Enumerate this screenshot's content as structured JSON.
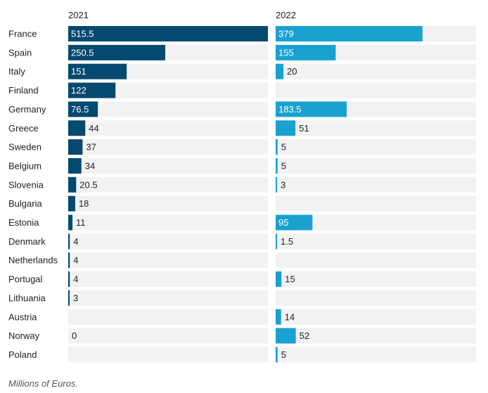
{
  "chart_data": {
    "type": "bar",
    "orientation": "horizontal",
    "layout": "small-multiples",
    "categories": [
      "France",
      "Spain",
      "Italy",
      "Finland",
      "Germany",
      "Greece",
      "Sweden",
      "Belgium",
      "Slovenia",
      "Bulgaria",
      "Estonia",
      "Denmark",
      "Netherlands",
      "Portugal",
      "Lithuania",
      "Austria",
      "Norway",
      "Poland"
    ],
    "series": [
      {
        "name": "2021",
        "color": "#04496f",
        "values": [
          515.5,
          250.5,
          151,
          122,
          76.5,
          44,
          37,
          34,
          20.5,
          18,
          11,
          4,
          4,
          4,
          3,
          null,
          0,
          null
        ],
        "labels": [
          "515.5",
          "250.5",
          "151",
          "122",
          "76.5",
          "44",
          "37",
          "34",
          "20.5",
          "18",
          "11",
          "4",
          "4",
          "4",
          "3",
          "",
          "0",
          ""
        ]
      },
      {
        "name": "2022",
        "color": "#19a2d0",
        "values": [
          379,
          155,
          20,
          null,
          183.5,
          51,
          5,
          5,
          3,
          null,
          95,
          1.5,
          null,
          15,
          null,
          14,
          52,
          5
        ],
        "labels": [
          "379",
          "155",
          "20",
          "",
          "183.5",
          "51",
          "5",
          "5",
          "3",
          "",
          "95",
          "1.5",
          "",
          "15",
          "",
          "14",
          "52",
          "5"
        ]
      }
    ],
    "xlim": [
      0,
      515.5
    ],
    "background_track_color": "#f2f2f2",
    "footnote": "Millions of Euros."
  }
}
